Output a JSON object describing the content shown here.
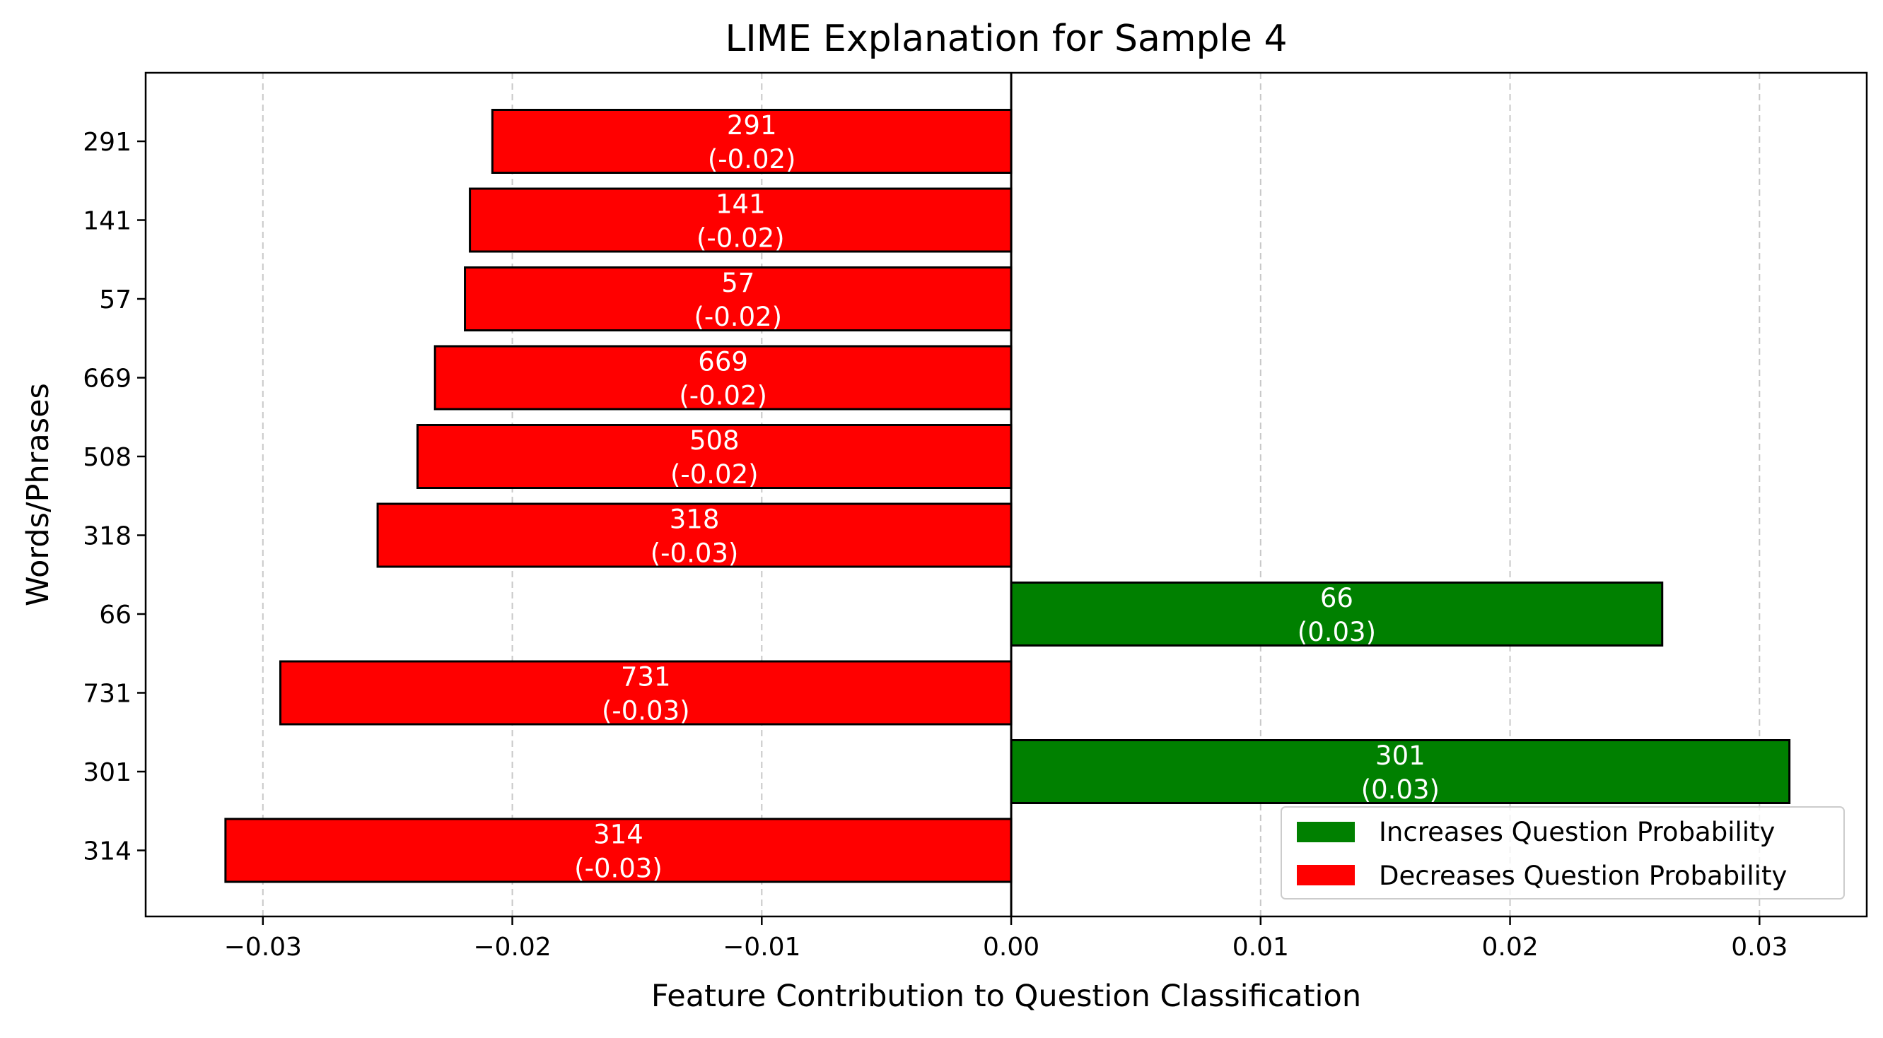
{
  "chart_data": {
    "type": "bar",
    "orientation": "horizontal",
    "title": "LIME Explanation for Sample 4",
    "xlabel": "Feature Contribution to Question Classification",
    "ylabel": "Words/Phrases",
    "xlim": [
      -0.0347,
      0.0343
    ],
    "x_ticks": [
      -0.03,
      -0.02,
      -0.01,
      0.0,
      0.01,
      0.02,
      0.03
    ],
    "x_tick_labels": [
      "−0.03",
      "−0.02",
      "−0.01",
      "0.00",
      "0.01",
      "0.02",
      "0.03"
    ],
    "grid": "x-dashed",
    "categories": [
      "291",
      "141",
      "57",
      "669",
      "508",
      "318",
      "66",
      "731",
      "301",
      "314"
    ],
    "values": [
      -0.0208,
      -0.0217,
      -0.0219,
      -0.0231,
      -0.0238,
      -0.0254,
      0.0261,
      -0.0293,
      0.0312,
      -0.0315
    ],
    "bar_labels": [
      [
        "291",
        "(-0.02)"
      ],
      [
        "141",
        "(-0.02)"
      ],
      [
        "57",
        "(-0.02)"
      ],
      [
        "669",
        "(-0.02)"
      ],
      [
        "508",
        "(-0.02)"
      ],
      [
        "318",
        "(-0.03)"
      ],
      [
        "66",
        "(0.03)"
      ],
      [
        "731",
        "(-0.03)"
      ],
      [
        "301",
        "(0.03)"
      ],
      [
        "314",
        "(-0.03)"
      ]
    ],
    "colors": {
      "positive": "#008000",
      "negative": "#ff0000",
      "edge": "#000000"
    },
    "legend": {
      "position": "lower-right",
      "entries": [
        {
          "label": "Increases Question Probability",
          "color": "#008000"
        },
        {
          "label": "Decreases Question Probability",
          "color": "#ff0000"
        }
      ]
    }
  }
}
